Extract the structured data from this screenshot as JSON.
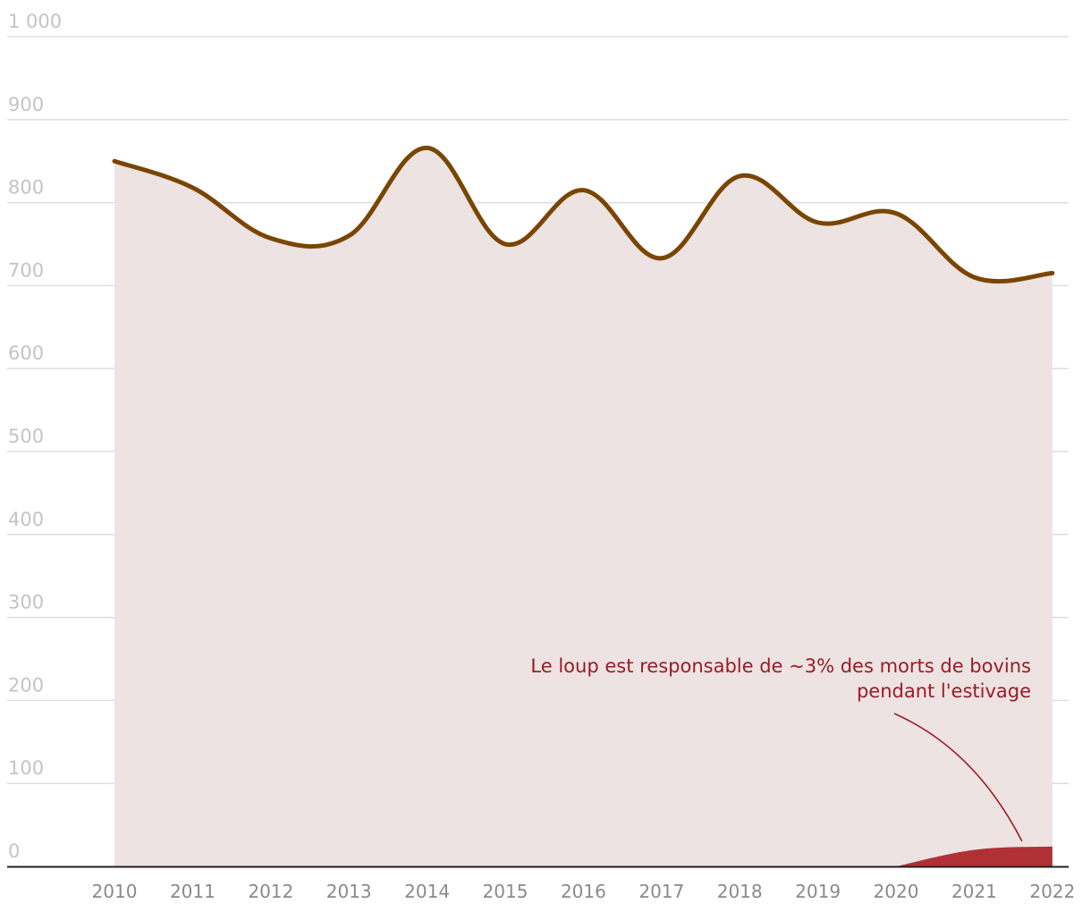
{
  "chart_data": {
    "type": "area",
    "title": "",
    "xlabel": "",
    "ylabel": "",
    "ylim": [
      0,
      1000
    ],
    "grid": true,
    "y_ticks": [
      "0",
      "100",
      "200",
      "300",
      "400",
      "500",
      "600",
      "700",
      "800",
      "900",
      "1 000"
    ],
    "x": [
      "2010",
      "2011",
      "2012",
      "2013",
      "2014",
      "2015",
      "2016",
      "2017",
      "2018",
      "2019",
      "2020",
      "2021",
      "2022"
    ],
    "series": [
      {
        "name": "",
        "values": [
          850,
          818,
          757,
          760,
          866,
          750,
          815,
          733,
          832,
          776,
          787,
          710,
          715
        ],
        "colors": {
          "line": "#7a4500",
          "fill": "#ece3e2"
        }
      },
      {
        "name": "",
        "values": [
          null,
          null,
          null,
          null,
          null,
          null,
          null,
          null,
          null,
          null,
          0,
          20,
          24
        ],
        "colors": {
          "fill": "#b03035"
        }
      }
    ],
    "annotation": {
      "lines": [
        "Le loup est responsable de ~3% des morts de bovins",
        "pendant l'estivage"
      ],
      "points_to_year": "2022",
      "color": "#9b1b25"
    }
  }
}
